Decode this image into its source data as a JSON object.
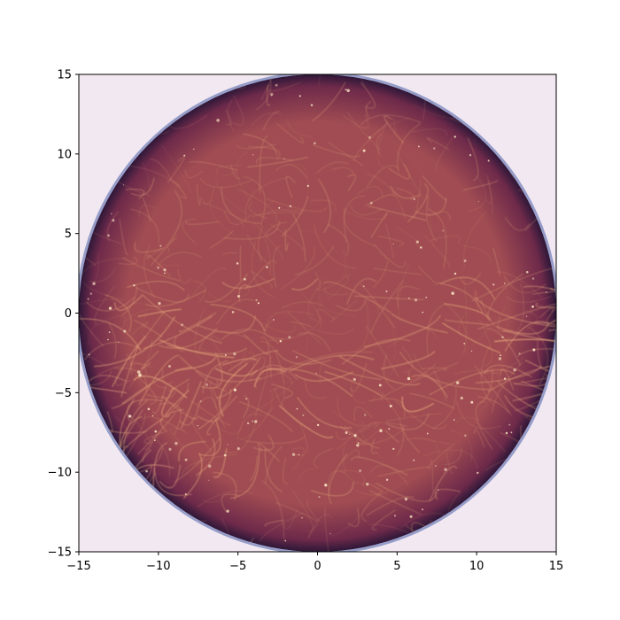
{
  "chart_data": {
    "type": "heatmap",
    "title": "",
    "xlabel": "",
    "ylabel": "",
    "xlim": [
      -15,
      15
    ],
    "ylim": [
      -15,
      15
    ],
    "x_ticks": [
      -15,
      -10,
      -5,
      0,
      5,
      10,
      15
    ],
    "y_ticks": [
      -15,
      -10,
      -5,
      0,
      5,
      10,
      15
    ],
    "x_tick_labels": [
      "−15",
      "−10",
      "−5",
      "0",
      "5",
      "10",
      "15"
    ],
    "y_tick_labels": [
      "−15",
      "−10",
      "−5",
      "0",
      "5",
      "10",
      "15"
    ],
    "grid": false,
    "legend": "none",
    "aspect": "equal",
    "colormap": "twilight_shifted",
    "background_color": "#f2e8f1",
    "disk": {
      "center": [
        0,
        0
      ],
      "radius": 15
    },
    "colors": {
      "disk_edge": "#2d1738",
      "disk_outer": "#6e2a4a",
      "disk_inner": "#a04c52",
      "filament": "#e6a77a",
      "filament_bright": "#fbe7c4",
      "edge_blue": "#4a5ea8"
    }
  }
}
